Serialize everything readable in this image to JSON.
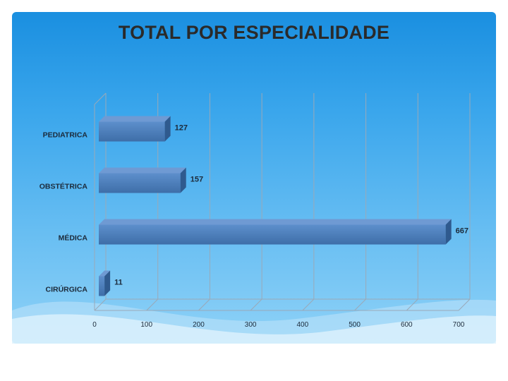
{
  "slide_title": "TOTAL POR ESPECIALIDADE",
  "chart_data": {
    "type": "bar",
    "orientation": "horizontal",
    "title": "TOTAL POR ESPECIALIDADE",
    "categories": [
      "PEDIATRICA",
      "OBSTÉTRICA",
      "MÉDICA",
      "CIRÚRGICA"
    ],
    "values": [
      127,
      157,
      667,
      11
    ],
    "value_labels": [
      "127",
      "157",
      "667",
      "11"
    ],
    "xlim": [
      0,
      700
    ],
    "xticks": [
      "0",
      "100",
      "200",
      "300",
      "400",
      "500",
      "600",
      "700"
    ],
    "grid": "vertical",
    "bar_color": "#4f81bd"
  }
}
